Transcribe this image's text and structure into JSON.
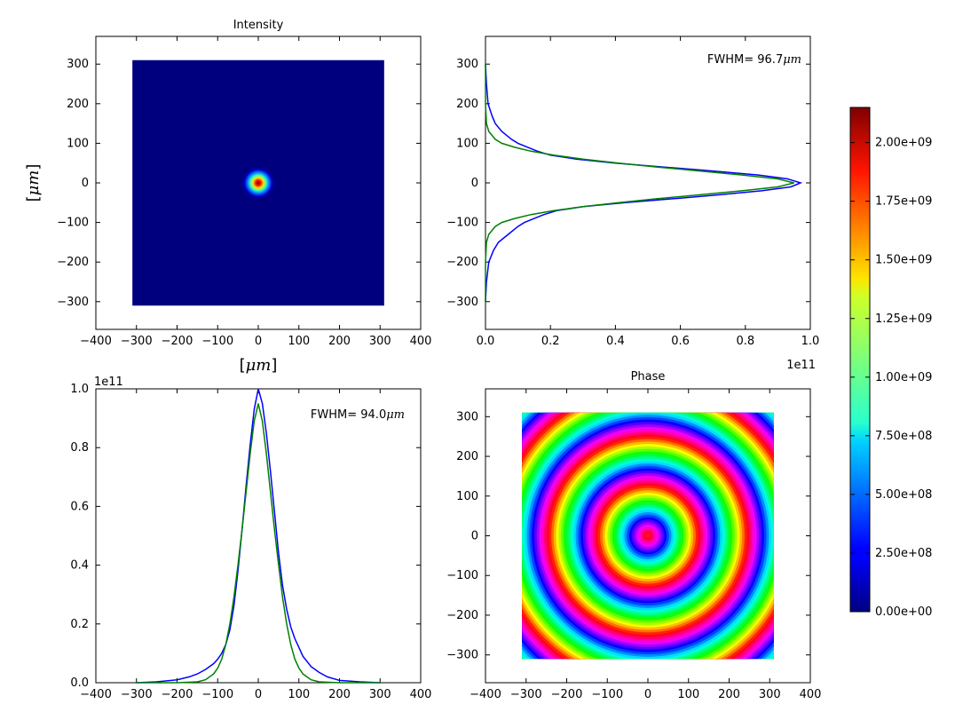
{
  "chart_data": [
    {
      "type": "heatmap",
      "title": "Intensity",
      "xlabel_pre": "[",
      "xlabel_unit": "μm",
      "xlabel_post": "]",
      "ylabel_pre": "[",
      "ylabel_unit": "μm",
      "ylabel_post": "]",
      "xlim": [
        -400,
        400
      ],
      "ylim": [
        -370,
        370
      ],
      "xticks": [
        -400,
        -300,
        -200,
        -100,
        0,
        100,
        200,
        300,
        400
      ],
      "yticks": [
        -300,
        -200,
        -100,
        0,
        100,
        200,
        300
      ],
      "extent": [
        -310,
        310,
        -310,
        310
      ],
      "peak_center": [
        0,
        0
      ],
      "peak_value": 2150000000.0,
      "description_colormap": "jet"
    },
    {
      "type": "line",
      "annotation_pre": "FWHM= 96.7",
      "annotation_unit": "μm",
      "offset_label": "1e11",
      "xlim": [
        0.0,
        1.0
      ],
      "ylim": [
        -370,
        370
      ],
      "xticks": [
        "0.0",
        "0.2",
        "0.4",
        "0.6",
        "0.8",
        "1.0"
      ],
      "yticks": [
        -300,
        -200,
        -100,
        0,
        100,
        200,
        300
      ],
      "orientation": "horizontal-profile",
      "series": [
        {
          "color": "#0000ff",
          "y": [
            -300,
            -250,
            -200,
            -170,
            -150,
            -130,
            -110,
            -100,
            -90,
            -80,
            -70,
            -60,
            -50,
            -40,
            -30,
            -20,
            -10,
            0,
            10,
            20,
            30,
            40,
            50,
            60,
            70,
            80,
            90,
            100,
            110,
            130,
            150,
            170,
            200,
            250,
            300
          ],
          "x": [
            0.0,
            0.003,
            0.01,
            0.025,
            0.04,
            0.07,
            0.1,
            0.12,
            0.15,
            0.18,
            0.22,
            0.3,
            0.43,
            0.58,
            0.72,
            0.85,
            0.94,
            0.97,
            0.93,
            0.84,
            0.7,
            0.55,
            0.4,
            0.28,
            0.2,
            0.16,
            0.13,
            0.1,
            0.08,
            0.05,
            0.03,
            0.02,
            0.008,
            0.003,
            0.0
          ]
        },
        {
          "color": "#008000",
          "y": [
            -300,
            -200,
            -150,
            -130,
            -110,
            -100,
            -90,
            -80,
            -70,
            -60,
            -50,
            -40,
            -30,
            -20,
            -10,
            0,
            10,
            20,
            30,
            40,
            50,
            60,
            70,
            80,
            90,
            100,
            110,
            130,
            150,
            200,
            300
          ],
          "x": [
            0.0,
            0.0,
            0.003,
            0.01,
            0.03,
            0.05,
            0.09,
            0.14,
            0.21,
            0.3,
            0.41,
            0.53,
            0.66,
            0.79,
            0.9,
            0.95,
            0.9,
            0.79,
            0.66,
            0.53,
            0.41,
            0.3,
            0.21,
            0.14,
            0.09,
            0.05,
            0.03,
            0.01,
            0.003,
            0.0,
            0.0
          ]
        }
      ]
    },
    {
      "type": "line",
      "annotation_pre": "FWHM= 94.0",
      "annotation_unit": "μm",
      "offset_label": "1e11",
      "xlim": [
        -400,
        400
      ],
      "ylim": [
        0.0,
        1.0
      ],
      "xticks": [
        -400,
        -300,
        -200,
        -100,
        0,
        100,
        200,
        300,
        400
      ],
      "yticks": [
        "0.0",
        "0.2",
        "0.4",
        "0.6",
        "0.8",
        "1.0"
      ],
      "series": [
        {
          "color": "#0000ff",
          "x": [
            -300,
            -250,
            -200,
            -170,
            -150,
            -130,
            -110,
            -100,
            -90,
            -80,
            -70,
            -60,
            -50,
            -40,
            -30,
            -20,
            -10,
            0,
            10,
            20,
            30,
            40,
            50,
            60,
            70,
            80,
            90,
            100,
            110,
            130,
            150,
            170,
            200,
            250,
            300
          ],
          "y": [
            0.0,
            0.003,
            0.01,
            0.02,
            0.03,
            0.045,
            0.065,
            0.08,
            0.1,
            0.13,
            0.18,
            0.26,
            0.38,
            0.52,
            0.67,
            0.81,
            0.93,
            1.0,
            0.95,
            0.85,
            0.72,
            0.58,
            0.44,
            0.33,
            0.25,
            0.19,
            0.15,
            0.12,
            0.09,
            0.055,
            0.035,
            0.02,
            0.008,
            0.003,
            0.0
          ]
        },
        {
          "color": "#008000",
          "x": [
            -300,
            -200,
            -150,
            -130,
            -110,
            -100,
            -90,
            -80,
            -70,
            -60,
            -50,
            -40,
            -30,
            -20,
            -10,
            0,
            10,
            20,
            30,
            40,
            50,
            60,
            70,
            80,
            90,
            100,
            110,
            130,
            150,
            200,
            300
          ],
          "y": [
            0.0,
            0.0,
            0.003,
            0.01,
            0.03,
            0.05,
            0.08,
            0.13,
            0.2,
            0.29,
            0.4,
            0.52,
            0.65,
            0.78,
            0.89,
            0.95,
            0.89,
            0.78,
            0.65,
            0.52,
            0.4,
            0.29,
            0.2,
            0.13,
            0.08,
            0.05,
            0.03,
            0.01,
            0.003,
            0.0,
            0.0
          ]
        }
      ]
    },
    {
      "type": "heatmap",
      "title": "Phase",
      "xlim": [
        -400,
        400
      ],
      "ylim": [
        -370,
        370
      ],
      "xticks": [
        -400,
        -300,
        -200,
        -100,
        0,
        100,
        200,
        300,
        400
      ],
      "yticks": [
        -300,
        -200,
        -100,
        0,
        100,
        200,
        300
      ],
      "extent": [
        -310,
        310,
        -310,
        310
      ],
      "ring_period": 120,
      "description_colormap": "hsv"
    }
  ],
  "colorbar": {
    "ticks": [
      "0.00e+00",
      "2.50e+08",
      "5.00e+08",
      "7.50e+08",
      "1.00e+09",
      "1.25e+09",
      "1.50e+09",
      "1.75e+09",
      "2.00e+09"
    ],
    "tick_values": [
      0,
      250000000.0,
      500000000.0,
      750000000.0,
      1000000000.0,
      1250000000.0,
      1500000000.0,
      1750000000.0,
      2000000000.0
    ],
    "vmin": 0,
    "vmax": 2150000000.0,
    "colormap": "jet"
  }
}
